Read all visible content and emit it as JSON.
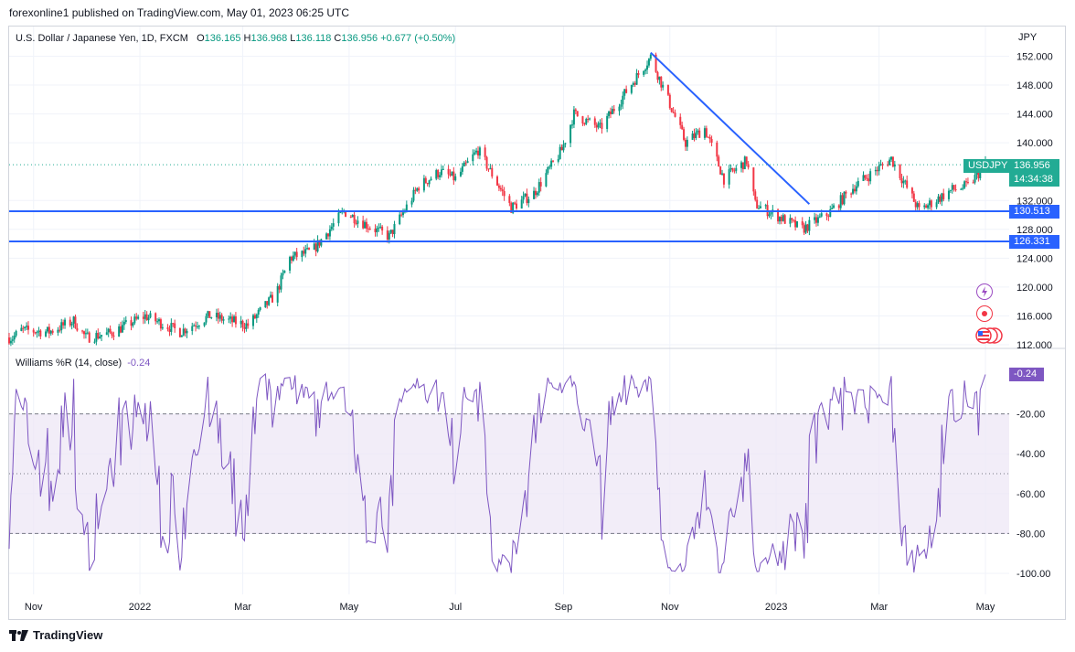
{
  "header": {
    "publisher": "forexonline1 published on TradingView.com, May 01, 2023 06:25 UTC"
  },
  "legend": {
    "symbol": "U.S. Dollar / Japanese Yen, 1D, FXCM",
    "o_label": "O",
    "o_value": "136.165",
    "h_label": "H",
    "h_value": "136.968",
    "l_label": "L",
    "l_value": "136.118",
    "c_label": "C",
    "c_value": "136.956",
    "change": "+0.677 (+0.50%)"
  },
  "price_axis": {
    "currency": "JPY",
    "ticks": [
      "152.000",
      "148.000",
      "144.000",
      "140.000",
      "132.000",
      "128.000",
      "124.000",
      "120.000",
      "116.000",
      "112.000"
    ],
    "last_symbol": "USDJPY",
    "last_price": "136.956",
    "countdown": "14:34:38",
    "level1": "130.513",
    "level2": "126.331"
  },
  "indicator": {
    "name": "Williams %R (14, close)",
    "value": "-0.24",
    "axis_ticks": [
      "-20.00",
      "-40.00",
      "-60.00",
      "-80.00",
      "-100.00"
    ],
    "value_tag": "-0.24"
  },
  "time_axis": [
    "Nov",
    "2022",
    "Mar",
    "May",
    "Jul",
    "Sep",
    "Nov",
    "2023",
    "Mar",
    "May"
  ],
  "footer": {
    "brand": "TradingView"
  },
  "colors": {
    "up": "#089981",
    "down": "#f23645",
    "line": "#2962ff",
    "wr": "#7e57c2",
    "wr_band": "#ede7f6",
    "tag_green": "#22ab94"
  },
  "chart_data": [
    {
      "type": "candlestick",
      "title": "U.S. Dollar / Japanese Yen, 1D, FXCM",
      "ylabel": "JPY",
      "ylim": [
        111,
        154
      ],
      "x_tick_labels": [
        "Nov",
        "2022",
        "Mar",
        "May",
        "Jul",
        "Sep",
        "Nov",
        "2023",
        "Mar",
        "May"
      ],
      "close_path": [
        [
          "2021-10-20",
          113.0
        ],
        [
          "2021-10-25",
          114.0
        ],
        [
          "2021-11-10",
          113.8
        ],
        [
          "2021-11-24",
          115.3
        ],
        [
          "2021-12-01",
          113.0
        ],
        [
          "2021-12-15",
          113.6
        ],
        [
          "2022-01-04",
          116.0
        ],
        [
          "2022-01-24",
          113.8
        ],
        [
          "2022-02-10",
          116.0
        ],
        [
          "2022-03-04",
          114.7
        ],
        [
          "2022-03-20",
          119.0
        ],
        [
          "2022-03-28",
          124.0
        ],
        [
          "2022-04-10",
          125.0
        ],
        [
          "2022-04-28",
          130.5
        ],
        [
          "2022-05-12",
          128.5
        ],
        [
          "2022-05-24",
          127.0
        ],
        [
          "2022-06-10",
          134.0
        ],
        [
          "2022-06-22",
          136.0
        ],
        [
          "2022-07-01",
          135.0
        ],
        [
          "2022-07-14",
          139.0
        ],
        [
          "2022-08-02",
          131.0
        ],
        [
          "2022-08-15",
          133.0
        ],
        [
          "2022-08-31",
          139.0
        ],
        [
          "2022-09-07",
          144.0
        ],
        [
          "2022-09-22",
          142.0
        ],
        [
          "2022-10-21",
          151.9
        ],
        [
          "2022-11-10",
          140.0
        ],
        [
          "2022-11-21",
          142.0
        ],
        [
          "2022-12-02",
          135.0
        ],
        [
          "2022-12-15",
          137.5
        ],
        [
          "2022-12-20",
          131.5
        ],
        [
          "2023-01-16",
          128.0
        ],
        [
          "2023-01-31",
          130.2
        ],
        [
          "2023-02-15",
          134.0
        ],
        [
          "2023-03-08",
          137.8
        ],
        [
          "2023-03-24",
          130.6
        ],
        [
          "2023-04-12",
          133.5
        ],
        [
          "2023-04-21",
          134.0
        ],
        [
          "2023-05-01",
          136.956
        ]
      ],
      "horizontal_levels": [
        130.513,
        126.331
      ],
      "trendline": [
        [
          "2022-10-21",
          152.5
        ],
        [
          "2023-01-20",
          131.5
        ]
      ],
      "last": {
        "open": 136.165,
        "high": 136.968,
        "low": 136.118,
        "close": 136.956,
        "change": 0.677,
        "change_pct": 0.5
      }
    },
    {
      "type": "line",
      "title": "Williams %R (14, close)",
      "ylim": [
        -105,
        5
      ],
      "levels": [
        -20,
        -50,
        -80
      ],
      "series": [
        {
          "name": "Williams %R (14, close)",
          "last": -0.24
        }
      ]
    }
  ]
}
